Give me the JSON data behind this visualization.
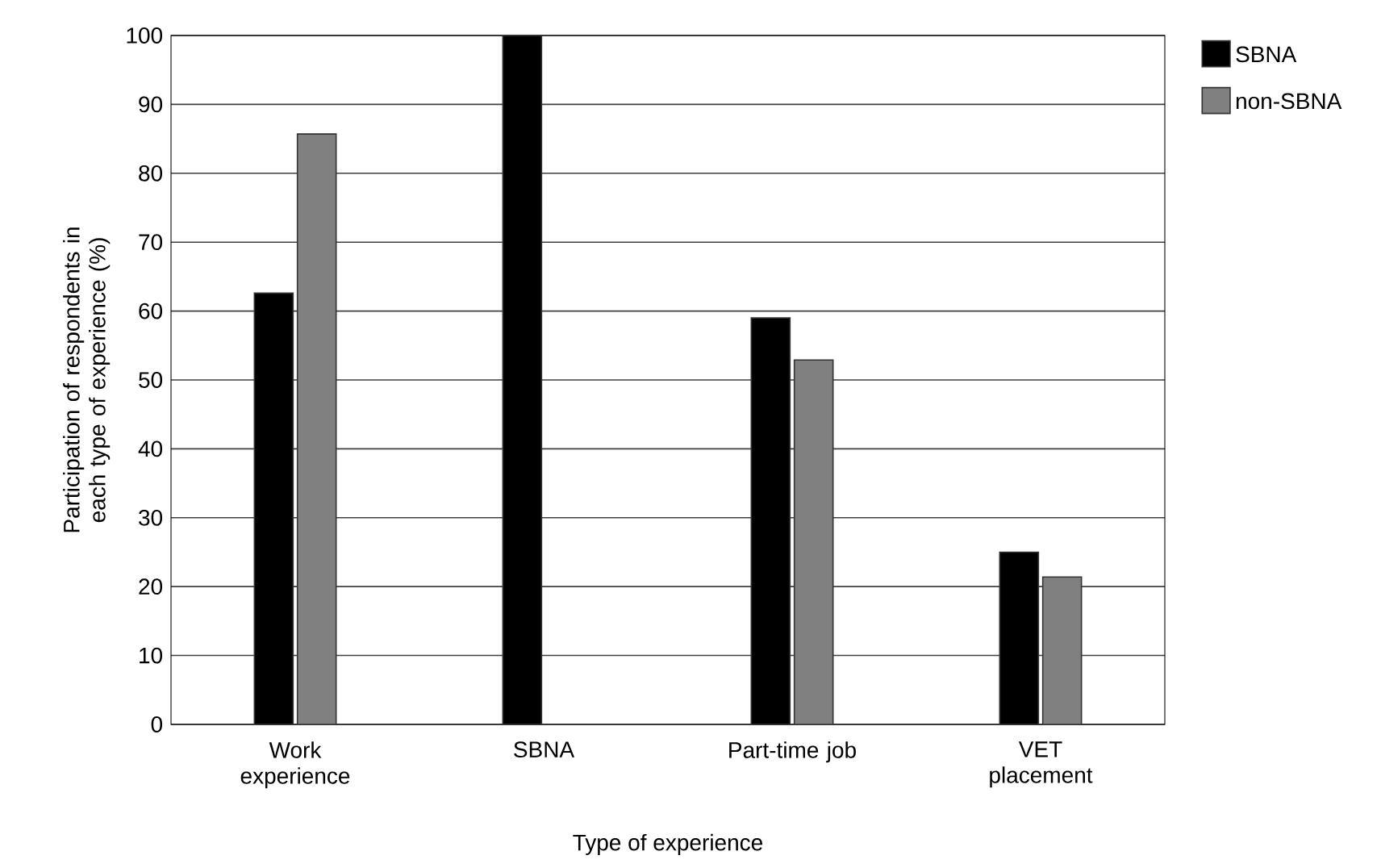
{
  "chart_data": {
    "type": "bar",
    "xlabel": "Type of experience",
    "ylabel": "Participation of respondents in each type of experience (%)",
    "categories": [
      "Work experience",
      "SBNA",
      "Part-time job",
      "VET placement"
    ],
    "series": [
      {
        "name": "SBNA",
        "color": "#000000",
        "values": [
          62.6,
          100,
          59.0,
          25.0
        ]
      },
      {
        "name": "non-SBNA",
        "color": "#808080",
        "values": [
          85.7,
          0,
          52.9,
          21.4
        ]
      }
    ],
    "ylim": [
      0,
      100
    ],
    "yticks": [
      0,
      10,
      20,
      30,
      40,
      50,
      60,
      70,
      80,
      90,
      100
    ],
    "grid": "y",
    "legend": "top right"
  }
}
